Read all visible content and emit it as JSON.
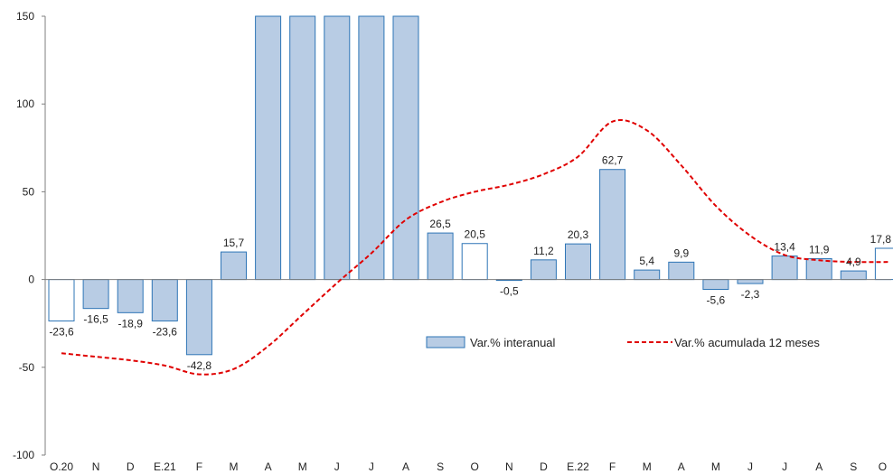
{
  "chart_data": {
    "type": "bar",
    "categories": [
      "O.20",
      "N",
      "D",
      "E.21",
      "F",
      "M",
      "A",
      "M",
      "J",
      "J",
      "A",
      "S",
      "O",
      "N",
      "D",
      "E.22",
      "F",
      "M",
      "A",
      "M",
      "J",
      "J",
      "A",
      "S",
      "O"
    ],
    "series": [
      {
        "name": "Var.% interanual",
        "type": "bar",
        "values": [
          -23.6,
          -16.5,
          -18.9,
          -23.6,
          -42.8,
          15.7,
          150,
          150,
          150,
          150,
          150,
          26.5,
          20.5,
          -0.5,
          11.2,
          20.3,
          62.7,
          5.4,
          9.9,
          -5.6,
          -2.3,
          13.4,
          11.9,
          4.9,
          17.8
        ],
        "data_labels": [
          "-23,6",
          "-16,5",
          "-18,9",
          "-23,6",
          "-42,8",
          "15,7",
          "",
          "",
          "",
          "",
          "",
          "26,5",
          "20,5",
          "-0,5",
          "11,2",
          "20,3",
          "62,7",
          "5,4",
          "9,9",
          "-5,6",
          "-2,3",
          "13,4",
          "11,9",
          "4,9",
          "17,8"
        ],
        "clipped_above_axis": [
          6,
          7,
          8,
          9,
          10
        ],
        "hollow_bars": [
          0,
          12,
          24
        ]
      },
      {
        "name": "Var.% acumulada 12 meses",
        "type": "line",
        "style": "dashed",
        "values": [
          -42,
          -44,
          -46,
          -49,
          -54,
          -51,
          -38,
          -20,
          -2,
          15,
          34,
          44,
          50,
          54,
          60,
          70,
          90,
          85,
          65,
          42,
          25,
          14,
          11,
          10,
          10
        ]
      }
    ],
    "ylim": [
      -100,
      150
    ],
    "yticks": [
      -100,
      -50,
      0,
      50,
      100,
      150
    ],
    "ytick_labels": [
      "-100",
      "-50",
      "0",
      "50",
      "100",
      "150"
    ],
    "grid": false,
    "legend_position": "middle-right",
    "colors": {
      "bar_fill": "#b8cce4",
      "bar_stroke": "#2e75b6",
      "hollow_fill": "#ffffff",
      "line": "#e00000",
      "axis": "#7f7f7f"
    }
  }
}
